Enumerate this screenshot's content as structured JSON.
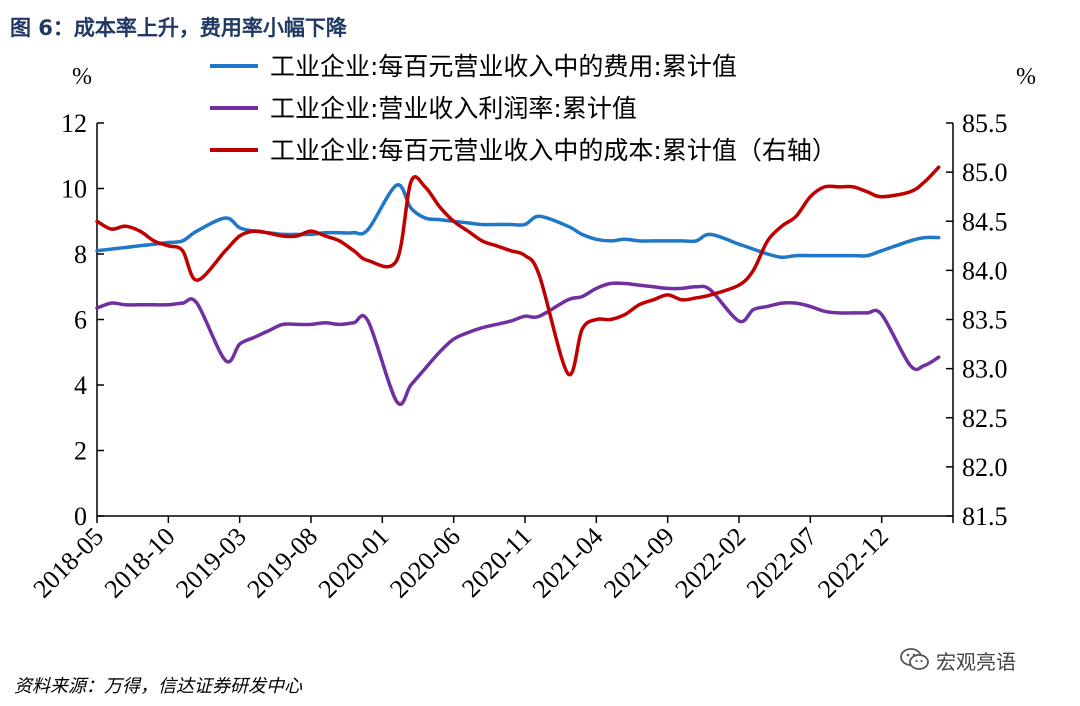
{
  "figure": {
    "title": "图 6：成本率上升，费用率小幅下降",
    "source": "资料来源：万得，信达证券研发中心",
    "watermark": "宏观亮语",
    "watermark_icon": "wechat-icon"
  },
  "chart_data": {
    "type": "line",
    "left_unit": "%",
    "right_unit": "%",
    "left_ylim": [
      0,
      12
    ],
    "left_yticks": [
      "0",
      "2",
      "4",
      "6",
      "8",
      "10",
      "12"
    ],
    "right_ylim": [
      81.5,
      85.5
    ],
    "right_yticks": [
      "81.5",
      "82.0",
      "82.5",
      "83.0",
      "83.5",
      "84.0",
      "84.5",
      "85.0",
      "85.5"
    ],
    "x_tick_labels": [
      "2018-05",
      "2018-10",
      "2019-03",
      "2019-08",
      "2020-01",
      "2020-06",
      "2020-11",
      "2021-04",
      "2021-09",
      "2022-02",
      "2022-07",
      "2022-12"
    ],
    "x_start": "2018-05",
    "x_end": "2023-05",
    "grid": false,
    "legend_position": "top",
    "series": [
      {
        "name": "工业企业:每百元营业收入中的费用:累计值",
        "axis": "left",
        "color": "#1f77c8",
        "points": [
          [
            "2018-05",
            8.1
          ],
          [
            "2018-06",
            8.15
          ],
          [
            "2018-07",
            8.2
          ],
          [
            "2018-08",
            8.25
          ],
          [
            "2018-09",
            8.3
          ],
          [
            "2018-10",
            8.35
          ],
          [
            "2018-11",
            8.4
          ],
          [
            "2018-12",
            8.7
          ],
          [
            "2019-02",
            9.1
          ],
          [
            "2019-03",
            8.8
          ],
          [
            "2019-04",
            8.7
          ],
          [
            "2019-05",
            8.65
          ],
          [
            "2019-06",
            8.6
          ],
          [
            "2019-07",
            8.6
          ],
          [
            "2019-08",
            8.6
          ],
          [
            "2019-09",
            8.65
          ],
          [
            "2019-10",
            8.65
          ],
          [
            "2019-11",
            8.65
          ],
          [
            "2019-12",
            8.75
          ],
          [
            "2020-02",
            10.1
          ],
          [
            "2020-03",
            9.4
          ],
          [
            "2020-04",
            9.1
          ],
          [
            "2020-05",
            9.05
          ],
          [
            "2020-06",
            9.0
          ],
          [
            "2020-07",
            8.95
          ],
          [
            "2020-08",
            8.9
          ],
          [
            "2020-09",
            8.9
          ],
          [
            "2020-10",
            8.9
          ],
          [
            "2020-11",
            8.9
          ],
          [
            "2020-12",
            9.15
          ],
          [
            "2021-02",
            8.85
          ],
          [
            "2021-03",
            8.6
          ],
          [
            "2021-04",
            8.45
          ],
          [
            "2021-05",
            8.4
          ],
          [
            "2021-06",
            8.45
          ],
          [
            "2021-07",
            8.4
          ],
          [
            "2021-08",
            8.4
          ],
          [
            "2021-09",
            8.4
          ],
          [
            "2021-10",
            8.4
          ],
          [
            "2021-11",
            8.4
          ],
          [
            "2021-12",
            8.6
          ],
          [
            "2022-02",
            8.3
          ],
          [
            "2022-03",
            8.15
          ],
          [
            "2022-04",
            8.0
          ],
          [
            "2022-05",
            7.9
          ],
          [
            "2022-06",
            7.95
          ],
          [
            "2022-07",
            7.95
          ],
          [
            "2022-08",
            7.95
          ],
          [
            "2022-09",
            7.95
          ],
          [
            "2022-10",
            7.95
          ],
          [
            "2022-11",
            7.95
          ],
          [
            "2022-12",
            8.1
          ],
          [
            "2023-02",
            8.4
          ],
          [
            "2023-03",
            8.5
          ],
          [
            "2023-04",
            8.5
          ]
        ]
      },
      {
        "name": "工业企业:营业收入利润率:累计值",
        "axis": "left",
        "color": "#7030a0",
        "points": [
          [
            "2018-05",
            6.35
          ],
          [
            "2018-06",
            6.5
          ],
          [
            "2018-07",
            6.45
          ],
          [
            "2018-08",
            6.45
          ],
          [
            "2018-09",
            6.45
          ],
          [
            "2018-10",
            6.45
          ],
          [
            "2018-11",
            6.5
          ],
          [
            "2018-12",
            6.5
          ],
          [
            "2019-02",
            4.75
          ],
          [
            "2019-03",
            5.25
          ],
          [
            "2019-04",
            5.45
          ],
          [
            "2019-05",
            5.65
          ],
          [
            "2019-06",
            5.85
          ],
          [
            "2019-07",
            5.85
          ],
          [
            "2019-08",
            5.85
          ],
          [
            "2019-09",
            5.9
          ],
          [
            "2019-10",
            5.85
          ],
          [
            "2019-11",
            5.9
          ],
          [
            "2019-12",
            5.95
          ],
          [
            "2020-02",
            3.5
          ],
          [
            "2020-03",
            4.0
          ],
          [
            "2020-04",
            4.5
          ],
          [
            "2020-05",
            5.0
          ],
          [
            "2020-06",
            5.4
          ],
          [
            "2020-07",
            5.6
          ],
          [
            "2020-08",
            5.75
          ],
          [
            "2020-09",
            5.85
          ],
          [
            "2020-10",
            5.95
          ],
          [
            "2020-11",
            6.1
          ],
          [
            "2020-12",
            6.1
          ],
          [
            "2021-02",
            6.6
          ],
          [
            "2021-03",
            6.7
          ],
          [
            "2021-04",
            6.95
          ],
          [
            "2021-05",
            7.1
          ],
          [
            "2021-06",
            7.1
          ],
          [
            "2021-07",
            7.05
          ],
          [
            "2021-08",
            7.0
          ],
          [
            "2021-09",
            6.95
          ],
          [
            "2021-10",
            6.95
          ],
          [
            "2021-11",
            7.0
          ],
          [
            "2021-12",
            6.9
          ],
          [
            "2022-02",
            5.95
          ],
          [
            "2022-03",
            6.3
          ],
          [
            "2022-04",
            6.4
          ],
          [
            "2022-05",
            6.5
          ],
          [
            "2022-06",
            6.5
          ],
          [
            "2022-07",
            6.4
          ],
          [
            "2022-08",
            6.25
          ],
          [
            "2022-09",
            6.2
          ],
          [
            "2022-10",
            6.2
          ],
          [
            "2022-11",
            6.2
          ],
          [
            "2022-12",
            6.15
          ],
          [
            "2023-02",
            4.6
          ],
          [
            "2023-03",
            4.6
          ],
          [
            "2023-04",
            4.85
          ]
        ]
      },
      {
        "name": "工业企业:每百元营业收入中的成本:累计值（右轴）",
        "axis": "right",
        "color": "#c00000",
        "points": [
          [
            "2018-05",
            84.5
          ],
          [
            "2018-06",
            84.42
          ],
          [
            "2018-07",
            84.45
          ],
          [
            "2018-08",
            84.4
          ],
          [
            "2018-09",
            84.3
          ],
          [
            "2018-10",
            84.25
          ],
          [
            "2018-11",
            84.2
          ],
          [
            "2018-12",
            83.9
          ],
          [
            "2019-02",
            84.2
          ],
          [
            "2019-03",
            84.35
          ],
          [
            "2019-04",
            84.4
          ],
          [
            "2019-05",
            84.38
          ],
          [
            "2019-06",
            84.35
          ],
          [
            "2019-07",
            84.35
          ],
          [
            "2019-08",
            84.4
          ],
          [
            "2019-09",
            84.35
          ],
          [
            "2019-10",
            84.3
          ],
          [
            "2019-11",
            84.2
          ],
          [
            "2019-12",
            84.1
          ],
          [
            "2020-02",
            84.1
          ],
          [
            "2020-03",
            84.9
          ],
          [
            "2020-04",
            84.85
          ],
          [
            "2020-05",
            84.65
          ],
          [
            "2020-06",
            84.5
          ],
          [
            "2020-07",
            84.4
          ],
          [
            "2020-08",
            84.3
          ],
          [
            "2020-09",
            84.25
          ],
          [
            "2020-10",
            84.2
          ],
          [
            "2020-11",
            84.15
          ],
          [
            "2020-12",
            83.95
          ],
          [
            "2021-02",
            82.95
          ],
          [
            "2021-03",
            83.4
          ],
          [
            "2021-04",
            83.5
          ],
          [
            "2021-05",
            83.5
          ],
          [
            "2021-06",
            83.55
          ],
          [
            "2021-07",
            83.65
          ],
          [
            "2021-08",
            83.7
          ],
          [
            "2021-09",
            83.75
          ],
          [
            "2021-10",
            83.7
          ],
          [
            "2021-11",
            83.72
          ],
          [
            "2021-12",
            83.75
          ],
          [
            "2022-02",
            83.85
          ],
          [
            "2022-03",
            84.0
          ],
          [
            "2022-04",
            84.3
          ],
          [
            "2022-05",
            84.45
          ],
          [
            "2022-06",
            84.55
          ],
          [
            "2022-07",
            84.75
          ],
          [
            "2022-08",
            84.85
          ],
          [
            "2022-09",
            84.85
          ],
          [
            "2022-10",
            84.85
          ],
          [
            "2022-11",
            84.8
          ],
          [
            "2022-12",
            84.75
          ],
          [
            "2023-02",
            84.8
          ],
          [
            "2023-03",
            84.9
          ],
          [
            "2023-04",
            85.05
          ]
        ]
      }
    ]
  }
}
